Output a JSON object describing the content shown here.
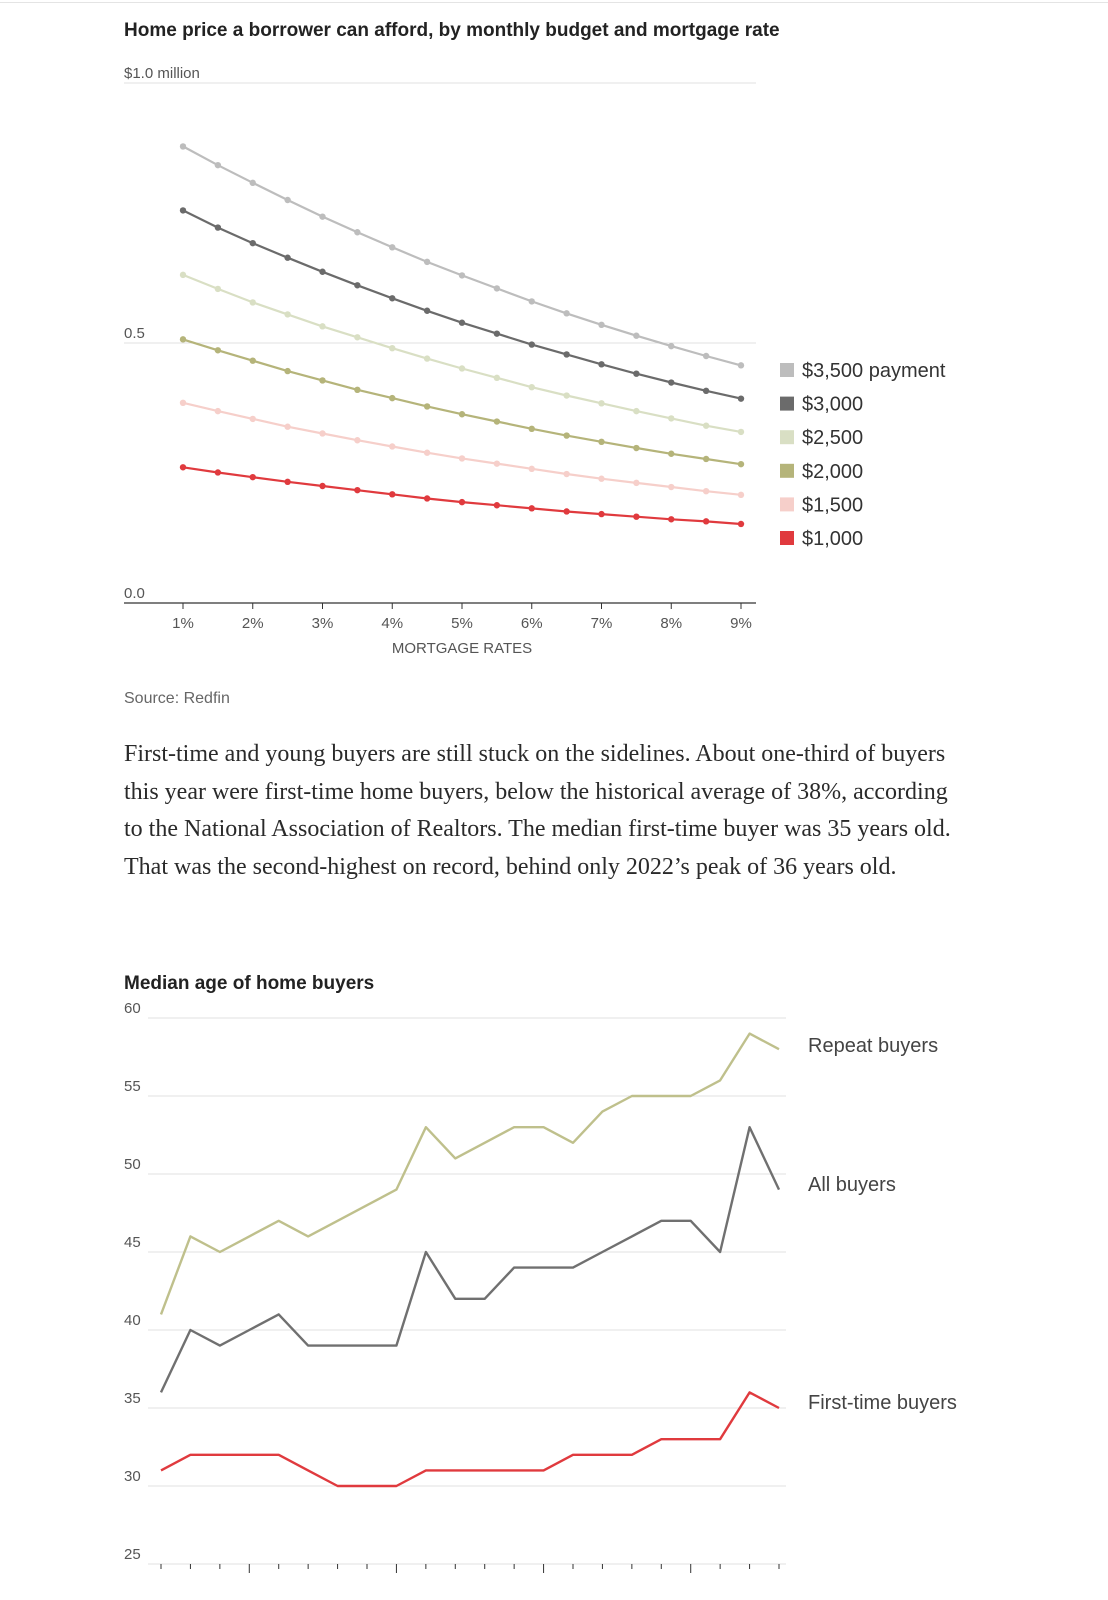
{
  "article": {
    "paragraph": "First-time and young buyers are still stuck on the sidelines. About one-third of buyers this year were first-time home buyers, below the historical average of 38%, according to the National Association of Realtors. The median first-time buyer was 35 years old. That was the second-highest on record, behind only 2022’s peak of 36 years old."
  },
  "chart_data": [
    {
      "type": "line",
      "title": "Home price a borrower can afford, by monthly budget and mortgage rate",
      "xlabel": "MORTGAGE RATES",
      "ylabel": "",
      "ylim": [
        0,
        1.0
      ],
      "y_ticks": [
        {
          "value": 1.0,
          "label": "$1.0 million"
        },
        {
          "value": 0.5,
          "label": "0.5"
        },
        {
          "value": 0.0,
          "label": "0.0"
        }
      ],
      "x_ticks": [
        {
          "value": 1,
          "label": "1%"
        },
        {
          "value": 2,
          "label": "2%"
        },
        {
          "value": 3,
          "label": "3%"
        },
        {
          "value": 4,
          "label": "4%"
        },
        {
          "value": 5,
          "label": "5%"
        },
        {
          "value": 6,
          "label": "6%"
        },
        {
          "value": 7,
          "label": "7%"
        },
        {
          "value": 8,
          "label": "8%"
        },
        {
          "value": 9,
          "label": "9%"
        }
      ],
      "x": [
        1,
        1.5,
        2,
        2.5,
        3,
        3.5,
        4,
        4.5,
        5,
        5.5,
        6,
        6.5,
        7,
        7.5,
        8,
        8.5,
        9
      ],
      "series": [
        {
          "name": "$3,500 payment",
          "color": "#bdbdbd",
          "values": [
            0.878,
            0.842,
            0.808,
            0.775,
            0.743,
            0.713,
            0.684,
            0.656,
            0.63,
            0.605,
            0.58,
            0.557,
            0.535,
            0.514,
            0.494,
            0.475,
            0.457
          ]
        },
        {
          "name": "$3,000",
          "color": "#6b6b6b",
          "values": [
            0.755,
            0.722,
            0.692,
            0.664,
            0.637,
            0.611,
            0.586,
            0.562,
            0.539,
            0.518,
            0.497,
            0.478,
            0.459,
            0.441,
            0.424,
            0.408,
            0.393
          ]
        },
        {
          "name": "$2,500",
          "color": "#d9dfc4",
          "values": [
            0.631,
            0.604,
            0.578,
            0.555,
            0.532,
            0.511,
            0.49,
            0.47,
            0.451,
            0.433,
            0.415,
            0.399,
            0.384,
            0.369,
            0.355,
            0.341,
            0.329
          ]
        },
        {
          "name": "$2,000",
          "color": "#b5b47a",
          "values": [
            0.507,
            0.486,
            0.466,
            0.446,
            0.428,
            0.41,
            0.394,
            0.378,
            0.363,
            0.349,
            0.335,
            0.322,
            0.31,
            0.298,
            0.287,
            0.277,
            0.267
          ]
        },
        {
          "name": "$1,500",
          "color": "#f6cfca",
          "values": [
            0.385,
            0.369,
            0.354,
            0.339,
            0.326,
            0.313,
            0.301,
            0.289,
            0.278,
            0.268,
            0.258,
            0.248,
            0.239,
            0.231,
            0.223,
            0.215,
            0.208
          ]
        },
        {
          "name": "$1,000",
          "color": "#e03a3e",
          "values": [
            0.261,
            0.251,
            0.242,
            0.233,
            0.225,
            0.217,
            0.209,
            0.201,
            0.194,
            0.188,
            0.182,
            0.176,
            0.171,
            0.166,
            0.161,
            0.157,
            0.152
          ]
        }
      ],
      "legend": "right",
      "source": "Source: Redfin"
    },
    {
      "type": "line",
      "title": "Median age of home buyers",
      "xlabel": "",
      "ylabel": "",
      "ylim": [
        25,
        60
      ],
      "y_ticks": [
        60,
        55,
        50,
        45,
        40,
        35,
        30,
        25
      ],
      "x": [
        0,
        1,
        2,
        3,
        4,
        5,
        6,
        7,
        8,
        9,
        10,
        11,
        12,
        13,
        14,
        15,
        16,
        17,
        18,
        19,
        20,
        21
      ],
      "series": [
        {
          "name": "Repeat buyers",
          "color": "#bfc08c",
          "values": [
            41,
            46,
            45,
            46,
            47,
            46,
            47,
            48,
            49,
            53,
            51,
            52,
            53,
            53,
            52,
            54,
            55,
            55,
            55,
            56,
            59,
            58
          ]
        },
        {
          "name": "All buyers",
          "color": "#707070",
          "values": [
            36,
            40,
            39,
            40,
            41,
            39,
            39,
            39,
            39,
            45,
            42,
            42,
            44,
            44,
            44,
            45,
            46,
            47,
            47,
            45,
            53,
            49
          ]
        },
        {
          "name": "First-time buyers",
          "color": "#e03a3e",
          "values": [
            31,
            32,
            32,
            32,
            32,
            31,
            30,
            30,
            30,
            31,
            31,
            31,
            31,
            31,
            32,
            32,
            32,
            33,
            33,
            33,
            36,
            35
          ]
        }
      ]
    }
  ]
}
